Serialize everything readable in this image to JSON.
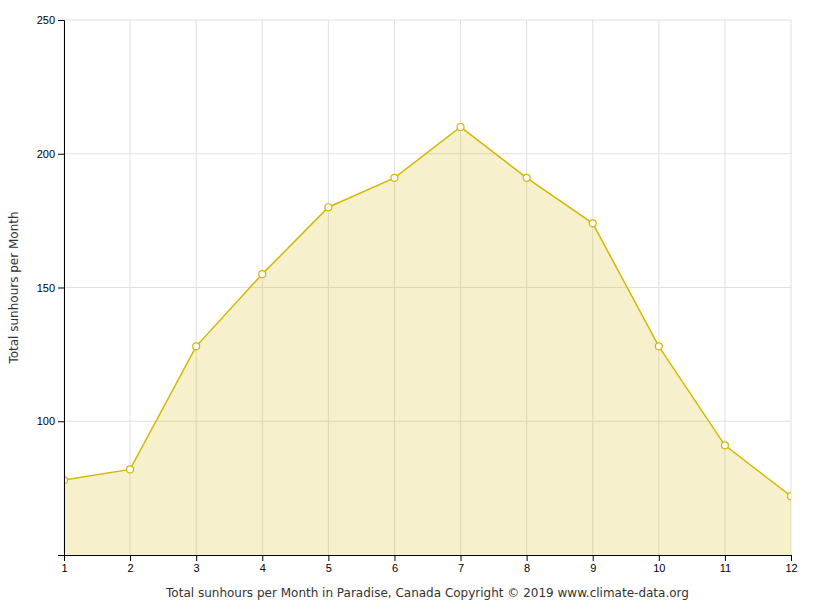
{
  "chart_data": {
    "type": "area",
    "x": [
      1,
      2,
      3,
      4,
      5,
      6,
      7,
      8,
      9,
      10,
      11,
      12
    ],
    "values": [
      78,
      82,
      128,
      155,
      180,
      191,
      210,
      191,
      174,
      128,
      91,
      72
    ],
    "color": "#D4B800",
    "marker": "circle",
    "xlabel": "Total sunhours per Month in Paradise, Canada Copyright © 2019 www.climate-data.org",
    "ylabel": "Total sunhours per Month",
    "xlim": [
      1,
      12
    ],
    "ylim": [
      50,
      250
    ],
    "xticks": [
      1,
      2,
      3,
      4,
      5,
      6,
      7,
      8,
      9,
      10,
      11,
      12
    ],
    "yticks": [
      100,
      150,
      200,
      250
    ],
    "grid": true
  }
}
